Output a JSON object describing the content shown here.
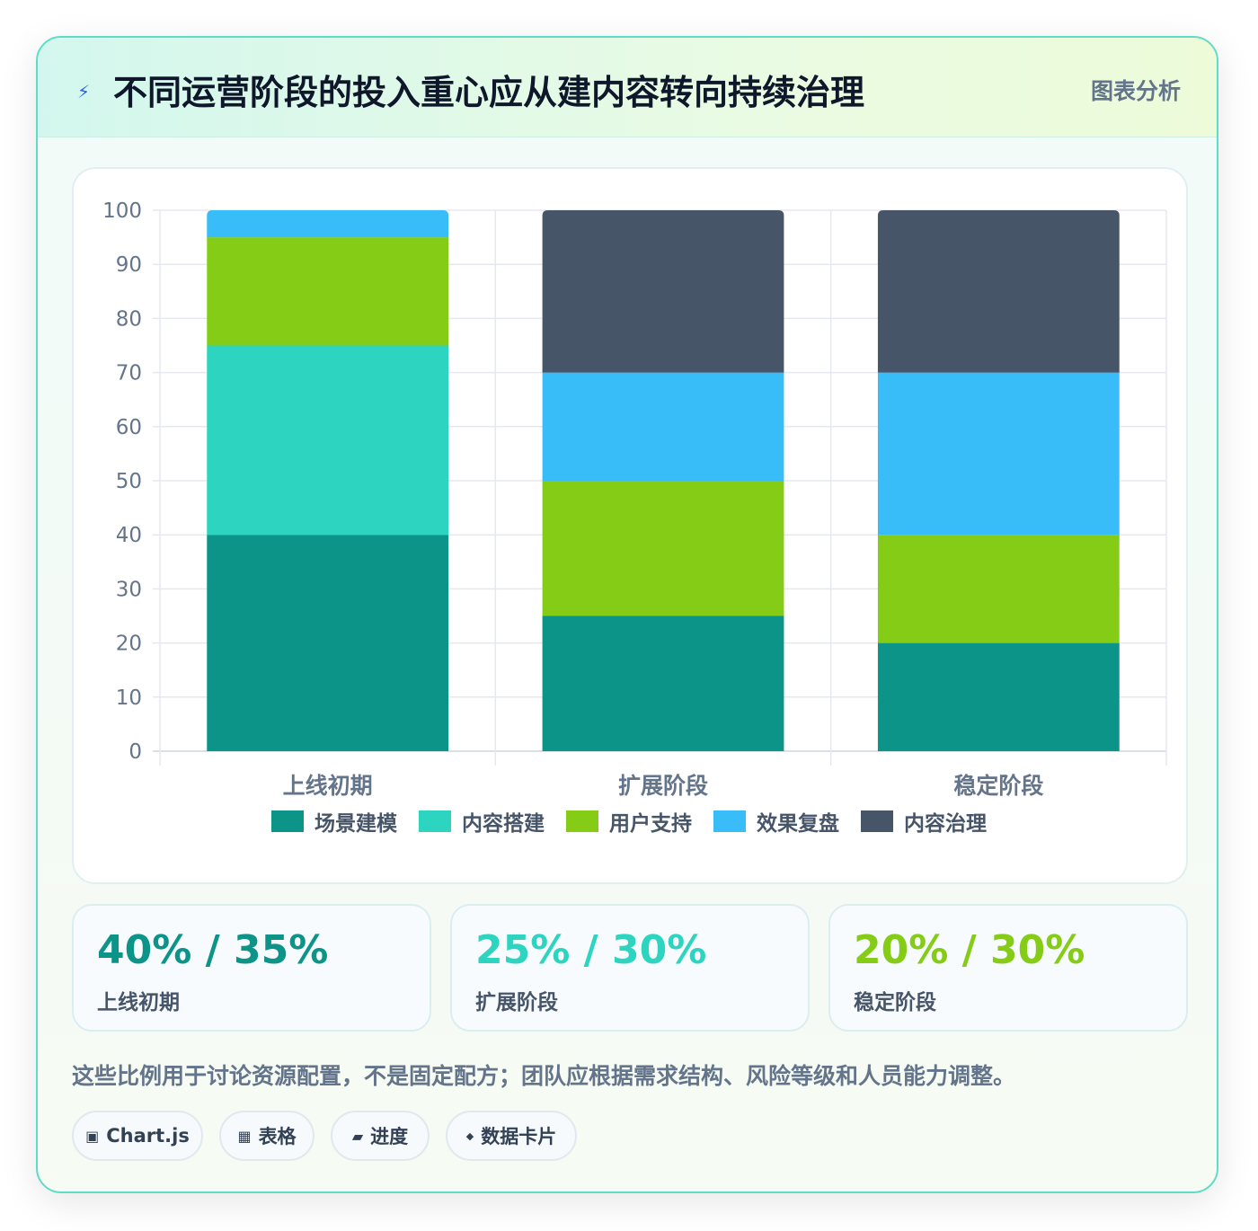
{
  "header": {
    "title": "不同运营阶段的投入重心应从建内容转向持续治理",
    "tag": "图表分析"
  },
  "chart_data": {
    "type": "bar",
    "stacked": true,
    "categories": [
      "上线初期",
      "扩展阶段",
      "稳定阶段"
    ],
    "series": [
      {
        "name": "场景建模",
        "values": [
          40,
          25,
          20
        ],
        "color": "#0d9488"
      },
      {
        "name": "内容搭建",
        "values": [
          35,
          0,
          0
        ],
        "color": "#2dd4bf"
      },
      {
        "name": "用户支持",
        "values": [
          20,
          25,
          20
        ],
        "color": "#84cc16"
      },
      {
        "name": "效果复盘",
        "values": [
          5,
          20,
          30
        ],
        "color": "#38bdf8"
      },
      {
        "name": "内容治理",
        "values": [
          0,
          30,
          30
        ],
        "color": "#475569"
      }
    ],
    "ylim": [
      0,
      100
    ],
    "yticks": [
      0,
      10,
      20,
      30,
      40,
      50,
      60,
      70,
      80,
      90,
      100
    ],
    "grid": true,
    "legend_position": "bottom"
  },
  "stats": [
    {
      "value": "40% / 35%",
      "label": "上线初期",
      "color": "#0d9488"
    },
    {
      "value": "25% / 30%",
      "label": "扩展阶段",
      "color": "#2dd4bf"
    },
    {
      "value": "20% / 30%",
      "label": "稳定阶段",
      "color": "#84cc16"
    }
  ],
  "note": "这些比例用于讨论资源配置，不是固定配方；团队应根据需求结构、风险等级和人员能力调整。",
  "pills": [
    {
      "icon": "chip-icon",
      "glyph": "▣",
      "label": "Chart.js"
    },
    {
      "icon": "table-icon",
      "glyph": "▦",
      "label": "表格"
    },
    {
      "icon": "progress-icon",
      "glyph": "▰",
      "label": "进度"
    },
    {
      "icon": "diamond-icon",
      "glyph": "◆",
      "label": "数据卡片"
    }
  ]
}
